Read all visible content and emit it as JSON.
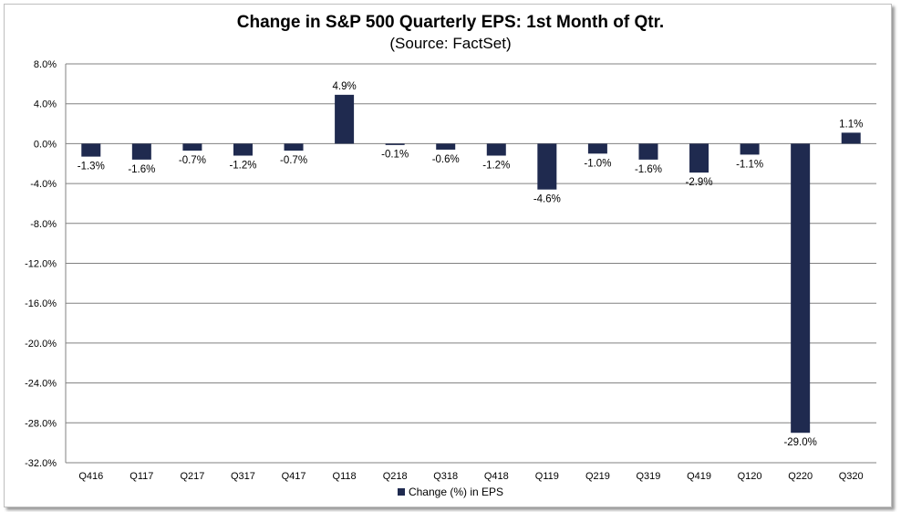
{
  "chart_data": {
    "type": "bar",
    "title": "Change in S&P 500 Quarterly EPS: 1st Month of Qtr.",
    "subtitle": "(Source: FactSet)",
    "categories": [
      "Q416",
      "Q117",
      "Q217",
      "Q317",
      "Q417",
      "Q118",
      "Q218",
      "Q318",
      "Q418",
      "Q119",
      "Q219",
      "Q319",
      "Q419",
      "Q120",
      "Q220",
      "Q320"
    ],
    "series": [
      {
        "name": "Change (%) in EPS",
        "values": [
          -1.3,
          -1.6,
          -0.7,
          -1.2,
          -0.7,
          4.9,
          -0.1,
          -0.6,
          -1.2,
          -4.6,
          -1.0,
          -1.6,
          -2.9,
          -1.1,
          -29.0,
          1.1
        ],
        "labels": [
          "-1.3%",
          "-1.6%",
          "-0.7%",
          "-1.2%",
          "-0.7%",
          "4.9%",
          "-0.1%",
          "-0.6%",
          "-1.2%",
          "-4.6%",
          "-1.0%",
          "-1.6%",
          "-2.9%",
          "-1.1%",
          "-29.0%",
          "1.1%"
        ],
        "color": "#1f2a4f"
      }
    ],
    "ylim": [
      -32,
      8
    ],
    "yticks": [
      8,
      4,
      0,
      -4,
      -8,
      -12,
      -16,
      -20,
      -24,
      -28,
      -32
    ],
    "ytick_labels": [
      "8.0%",
      "4.0%",
      "0.0%",
      "-4.0%",
      "-8.0%",
      "-12.0%",
      "-16.0%",
      "-20.0%",
      "-24.0%",
      "-28.0%",
      "-32.0%"
    ],
    "grid": true,
    "legend": "bottom",
    "gridline_color": "#808080"
  }
}
